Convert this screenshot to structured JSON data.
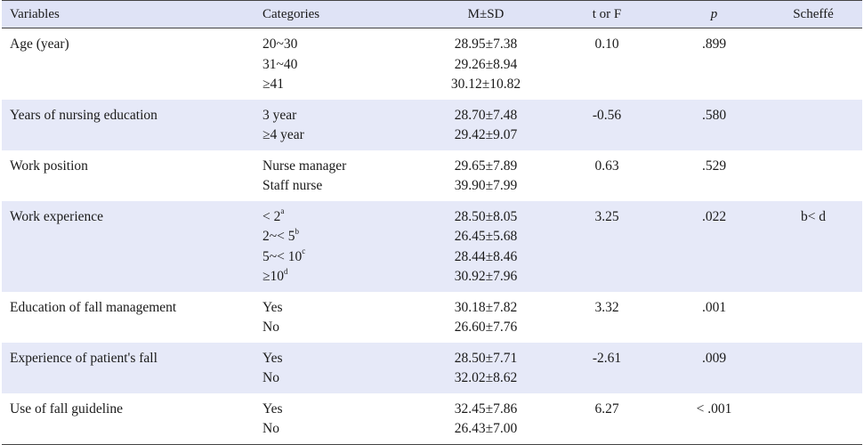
{
  "headers": {
    "variables": "Variables",
    "categories": "Categories",
    "msd": "M±SD",
    "t_or_f": "t or F",
    "p": "p",
    "scheffe": "Scheffé"
  },
  "rows": [
    {
      "variable": "Age (year)",
      "categories": [
        {
          "text": "20~30",
          "sup": ""
        },
        {
          "text": "31~40",
          "sup": ""
        },
        {
          "text": "≥41",
          "sup": ""
        }
      ],
      "msd": [
        "28.95±7.38",
        "29.26±8.94",
        "30.12±10.82"
      ],
      "t": "0.10",
      "p": ".899",
      "scheffe": ""
    },
    {
      "variable": "Years of nursing education",
      "categories": [
        {
          "text": "3 year",
          "sup": ""
        },
        {
          "text": "≥4 year",
          "sup": ""
        }
      ],
      "msd": [
        "28.70±7.48",
        "29.42±9.07"
      ],
      "t": "-0.56",
      "p": ".580",
      "scheffe": ""
    },
    {
      "variable": "Work position",
      "categories": [
        {
          "text": "Nurse manager",
          "sup": ""
        },
        {
          "text": "Staff nurse",
          "sup": ""
        }
      ],
      "msd": [
        "29.65±7.89",
        "39.90±7.99"
      ],
      "t": "0.63",
      "p": ".529",
      "scheffe": ""
    },
    {
      "variable": "Work experience",
      "categories": [
        {
          "text": "< 2",
          "sup": "a"
        },
        {
          "text": "2~< 5",
          "sup": "b"
        },
        {
          "text": "5~< 10",
          "sup": "c"
        },
        {
          "text": "≥10",
          "sup": "d"
        }
      ],
      "msd": [
        "28.50±8.05",
        "26.45±5.68",
        "28.44±8.46",
        "30.92±7.96"
      ],
      "t": "3.25",
      "p": ".022",
      "scheffe": "b< d"
    },
    {
      "variable": "Education of fall management",
      "categories": [
        {
          "text": "Yes",
          "sup": ""
        },
        {
          "text": "No",
          "sup": ""
        }
      ],
      "msd": [
        "30.18±7.82",
        "26.60±7.76"
      ],
      "t": "3.32",
      "p": ".001",
      "scheffe": ""
    },
    {
      "variable": "Experience of patient's fall",
      "categories": [
        {
          "text": "Yes",
          "sup": ""
        },
        {
          "text": "No",
          "sup": ""
        }
      ],
      "msd": [
        "28.50±7.71",
        "32.02±8.62"
      ],
      "t": "-2.61",
      "p": ".009",
      "scheffe": ""
    },
    {
      "variable": "Use of fall guideline",
      "categories": [
        {
          "text": "Yes",
          "sup": ""
        },
        {
          "text": "No",
          "sup": ""
        }
      ],
      "msd": [
        "32.45±7.86",
        "26.43±7.00"
      ],
      "t": "6.27",
      "p": "< .001",
      "scheffe": ""
    }
  ],
  "colors": {
    "header_bg": "#dfe3f6",
    "shade_bg": "#e6e9f8",
    "rule": "#444444"
  }
}
